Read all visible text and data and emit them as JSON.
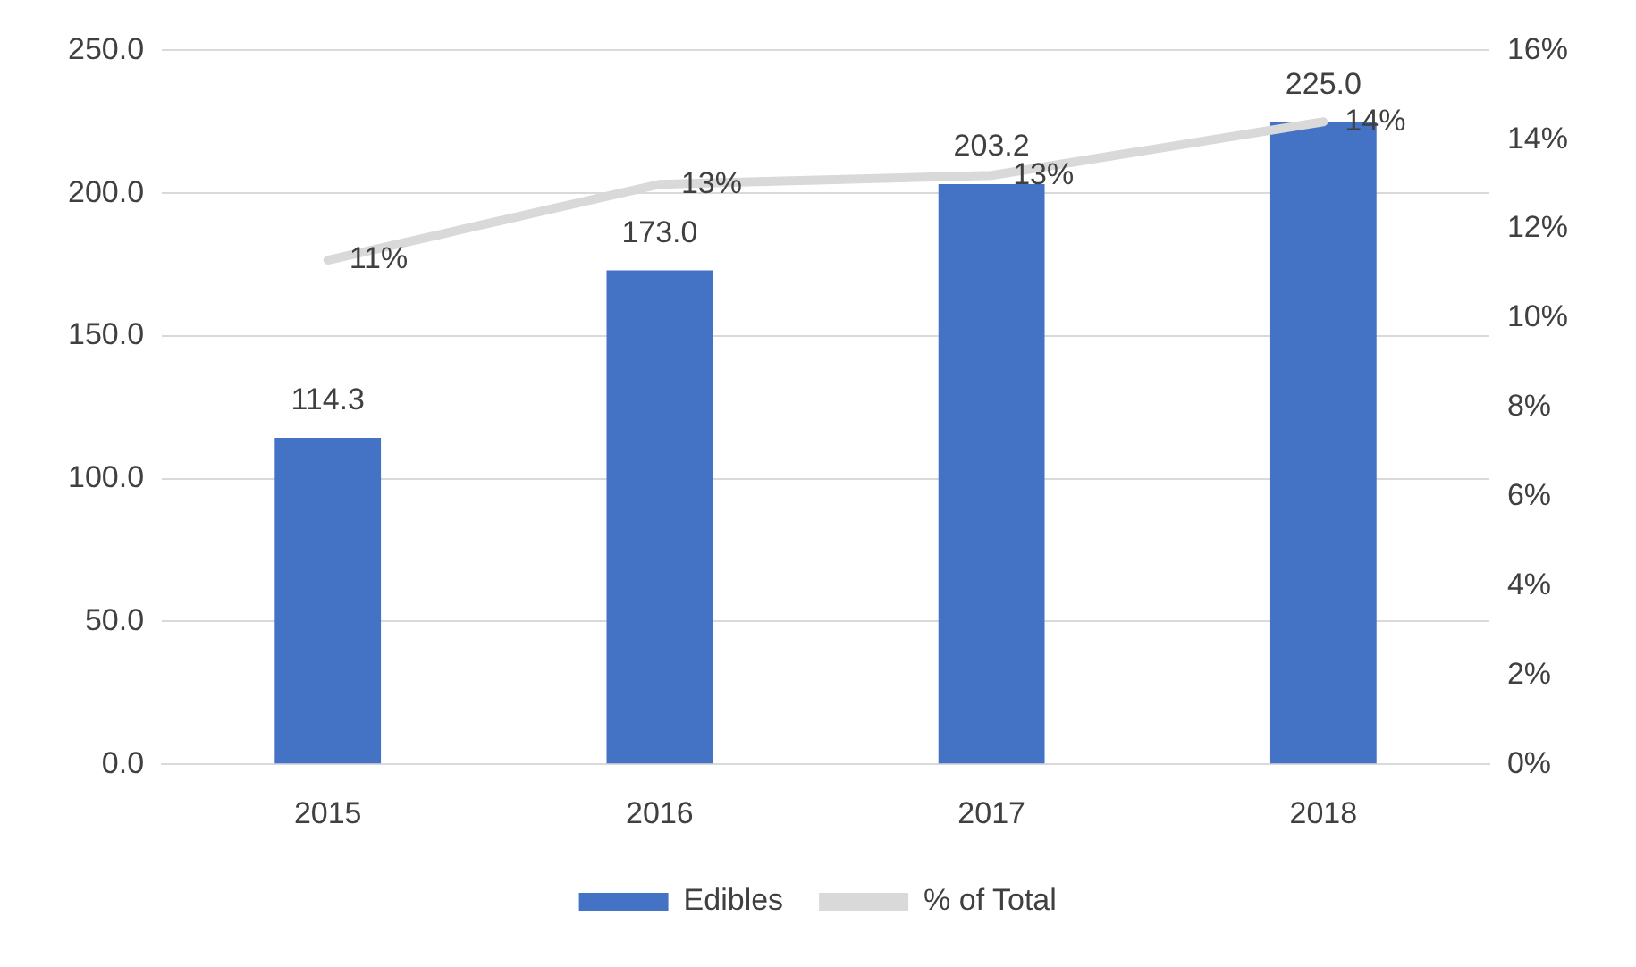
{
  "chart_data": {
    "type": "bar",
    "categories": [
      "2015",
      "2016",
      "2017",
      "2018"
    ],
    "series": [
      {
        "name": "Edibles",
        "color": "#4472c4",
        "values": [
          114.3,
          173.0,
          203.2,
          225.0
        ],
        "value_labels": [
          "114.3",
          "173.0",
          "203.2",
          "225.0"
        ]
      },
      {
        "name": "% of Total",
        "type": "line",
        "axis": "y2",
        "color": "#d9d9d9",
        "values": [
          11.3,
          13.0,
          13.2,
          14.4
        ],
        "value_labels": [
          "11%",
          "13%",
          "13%",
          "14%"
        ]
      }
    ],
    "ylim": [
      0,
      250
    ],
    "yticks": [
      {
        "value": 0,
        "label": "0.0"
      },
      {
        "value": 50,
        "label": "50.0"
      },
      {
        "value": 100,
        "label": "100.0"
      },
      {
        "value": 150,
        "label": "150.0"
      },
      {
        "value": 200,
        "label": "200.0"
      },
      {
        "value": 250,
        "label": "250.0"
      }
    ],
    "y2lim": [
      0,
      16
    ],
    "y2ticks": [
      {
        "value": 0,
        "label": "0%"
      },
      {
        "value": 2,
        "label": "2%"
      },
      {
        "value": 4,
        "label": "4%"
      },
      {
        "value": 6,
        "label": "6%"
      },
      {
        "value": 8,
        "label": "8%"
      },
      {
        "value": 10,
        "label": "10%"
      },
      {
        "value": 12,
        "label": "12%"
      },
      {
        "value": 14,
        "label": "14%"
      },
      {
        "value": 16,
        "label": "16%"
      }
    ],
    "grid": "y",
    "legend": "bottom",
    "marker": "none",
    "line_style": "solid"
  }
}
